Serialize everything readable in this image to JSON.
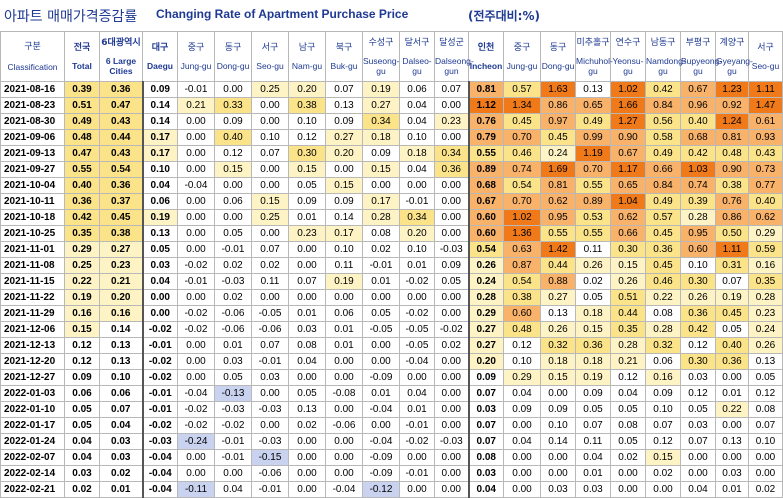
{
  "title": {
    "korean": "아파트 매매가격증감률",
    "english": "Changing Rate of Apartment Purchase Price",
    "unit": "(전주대비:%)"
  },
  "header_row1_label": "구분",
  "header_row2_label": "Classification",
  "columns": [
    {
      "ko": "전국",
      "en": "Total"
    },
    {
      "ko": "6대광역시",
      "en": "6 Large Cities"
    },
    {
      "ko": "대구",
      "en": "Daegu"
    },
    {
      "ko": "중구",
      "en": "Jung-gu"
    },
    {
      "ko": "동구",
      "en": "Dong-gu"
    },
    {
      "ko": "서구",
      "en": "Seo-gu"
    },
    {
      "ko": "남구",
      "en": "Nam-gu"
    },
    {
      "ko": "북구",
      "en": "Buk-gu"
    },
    {
      "ko": "수성구",
      "en": "Suseong-gu"
    },
    {
      "ko": "달서구",
      "en": "Dalseo-gu"
    },
    {
      "ko": "달성군",
      "en": "Dalseong-gun"
    },
    {
      "ko": "인천",
      "en": "Incheon"
    },
    {
      "ko": "중구",
      "en": "Jung-gu"
    },
    {
      "ko": "동구",
      "en": "Dong-gu"
    },
    {
      "ko": "미추홀구",
      "en": "Michuhol-gu"
    },
    {
      "ko": "연수구",
      "en": "Yeonsu-gu"
    },
    {
      "ko": "남동구",
      "en": "Namdong-gu"
    },
    {
      "ko": "부평구",
      "en": "Bupyeong-gu"
    },
    {
      "ko": "계양구",
      "en": "Gyeyang-gu"
    },
    {
      "ko": "서구",
      "en": "Seo-gu"
    }
  ],
  "rows": [
    {
      "date": "2021-08-16",
      "v": [
        "0.39",
        "0.36",
        "0.09",
        "-0.01",
        "0.00",
        "0.25",
        "0.20",
        "0.07",
        "0.19",
        "0.06",
        "0.07",
        "0.81",
        "0.57",
        "1.63",
        "0.13",
        "1.02",
        "0.42",
        "0.67",
        "1.23",
        "1.11"
      ]
    },
    {
      "date": "2021-08-23",
      "v": [
        "0.51",
        "0.47",
        "0.14",
        "0.21",
        "0.33",
        "0.00",
        "0.38",
        "0.13",
        "0.27",
        "0.04",
        "0.00",
        "1.12",
        "1.34",
        "0.86",
        "0.65",
        "1.66",
        "0.84",
        "0.96",
        "0.92",
        "1.47"
      ]
    },
    {
      "date": "2021-08-30",
      "v": [
        "0.49",
        "0.43",
        "0.14",
        "0.00",
        "0.09",
        "0.00",
        "0.10",
        "0.09",
        "0.34",
        "0.04",
        "0.23",
        "0.76",
        "0.45",
        "0.97",
        "0.49",
        "1.27",
        "0.56",
        "0.40",
        "1.24",
        "0.61"
      ]
    },
    {
      "date": "2021-09-06",
      "v": [
        "0.48",
        "0.44",
        "0.17",
        "0.00",
        "0.40",
        "0.10",
        "0.12",
        "0.27",
        "0.18",
        "0.10",
        "0.00",
        "0.79",
        "0.70",
        "0.45",
        "0.99",
        "0.90",
        "0.58",
        "0.68",
        "0.81",
        "0.93"
      ]
    },
    {
      "date": "2021-09-13",
      "v": [
        "0.47",
        "0.43",
        "0.17",
        "0.00",
        "0.12",
        "0.07",
        "0.30",
        "0.20",
        "0.09",
        "0.18",
        "0.34",
        "0.55",
        "0.46",
        "0.24",
        "1.19",
        "0.67",
        "0.49",
        "0.42",
        "0.48",
        "0.43"
      ]
    },
    {
      "date": "2021-09-27",
      "v": [
        "0.55",
        "0.54",
        "0.10",
        "0.00",
        "0.15",
        "0.00",
        "0.15",
        "0.00",
        "0.15",
        "0.04",
        "0.36",
        "0.89",
        "0.74",
        "1.69",
        "0.70",
        "1.17",
        "0.66",
        "1.03",
        "0.90",
        "0.73"
      ]
    },
    {
      "date": "2021-10-04",
      "v": [
        "0.40",
        "0.36",
        "0.04",
        "-0.04",
        "0.00",
        "0.00",
        "0.05",
        "0.15",
        "0.00",
        "0.00",
        "0.00",
        "0.68",
        "0.54",
        "0.81",
        "0.55",
        "0.65",
        "0.84",
        "0.74",
        "0.38",
        "0.77"
      ]
    },
    {
      "date": "2021-10-11",
      "v": [
        "0.36",
        "0.37",
        "0.06",
        "0.00",
        "0.06",
        "0.15",
        "0.09",
        "0.09",
        "0.17",
        "-0.01",
        "0.00",
        "0.67",
        "0.70",
        "0.62",
        "0.89",
        "1.04",
        "0.49",
        "0.39",
        "0.76",
        "0.40"
      ]
    },
    {
      "date": "2021-10-18",
      "v": [
        "0.42",
        "0.45",
        "0.19",
        "0.00",
        "0.00",
        "0.25",
        "0.01",
        "0.14",
        "0.28",
        "0.34",
        "0.00",
        "0.60",
        "1.02",
        "0.95",
        "0.53",
        "0.62",
        "0.57",
        "0.28",
        "0.86",
        "0.62"
      ]
    },
    {
      "date": "2021-10-25",
      "v": [
        "0.35",
        "0.38",
        "0.13",
        "0.00",
        "0.05",
        "0.00",
        "0.23",
        "0.17",
        "0.08",
        "0.20",
        "0.00",
        "0.60",
        "1.36",
        "0.55",
        "0.55",
        "0.66",
        "0.45",
        "0.95",
        "0.50",
        "0.29"
      ]
    },
    {
      "date": "2021-11-01",
      "v": [
        "0.29",
        "0.27",
        "0.05",
        "0.00",
        "-0.01",
        "0.07",
        "0.00",
        "0.10",
        "0.02",
        "0.10",
        "-0.03",
        "0.54",
        "0.63",
        "1.42",
        "0.11",
        "0.30",
        "0.36",
        "0.60",
        "1.11",
        "0.59"
      ]
    },
    {
      "date": "2021-11-08",
      "v": [
        "0.25",
        "0.23",
        "0.03",
        "-0.02",
        "0.02",
        "0.02",
        "0.00",
        "0.11",
        "-0.01",
        "0.01",
        "0.09",
        "0.26",
        "0.87",
        "0.44",
        "0.26",
        "0.15",
        "0.45",
        "0.10",
        "0.31",
        "0.16"
      ]
    },
    {
      "date": "2021-11-15",
      "v": [
        "0.22",
        "0.21",
        "0.04",
        "-0.01",
        "-0.03",
        "0.11",
        "0.07",
        "0.19",
        "0.01",
        "-0.02",
        "0.05",
        "0.24",
        "0.54",
        "0.88",
        "0.02",
        "0.26",
        "0.46",
        "0.30",
        "0.07",
        "0.35"
      ]
    },
    {
      "date": "2021-11-22",
      "v": [
        "0.19",
        "0.20",
        "0.00",
        "0.00",
        "0.02",
        "0.00",
        "0.00",
        "0.00",
        "0.00",
        "0.00",
        "0.00",
        "0.28",
        "0.38",
        "0.27",
        "0.05",
        "0.51",
        "0.22",
        "0.26",
        "0.19",
        "0.28"
      ]
    },
    {
      "date": "2021-11-29",
      "v": [
        "0.16",
        "0.16",
        "0.00",
        "-0.02",
        "-0.06",
        "-0.05",
        "0.01",
        "0.06",
        "0.05",
        "-0.02",
        "0.00",
        "0.29",
        "0.60",
        "0.13",
        "0.18",
        "0.44",
        "0.08",
        "0.36",
        "0.45",
        "0.23"
      ]
    },
    {
      "date": "2021-12-06",
      "v": [
        "0.15",
        "0.14",
        "-0.02",
        "-0.02",
        "-0.06",
        "-0.06",
        "0.03",
        "0.01",
        "-0.05",
        "-0.05",
        "-0.02",
        "0.27",
        "0.48",
        "0.26",
        "0.15",
        "0.35",
        "0.28",
        "0.42",
        "0.05",
        "0.24"
      ]
    },
    {
      "date": "2021-12-13",
      "v": [
        "0.12",
        "0.13",
        "-0.01",
        "0.00",
        "0.01",
        "0.07",
        "0.08",
        "0.01",
        "0.00",
        "-0.05",
        "0.02",
        "0.27",
        "0.12",
        "0.32",
        "0.36",
        "0.28",
        "0.32",
        "0.12",
        "0.40",
        "0.26"
      ]
    },
    {
      "date": "2021-12-20",
      "v": [
        "0.12",
        "0.13",
        "-0.02",
        "0.00",
        "0.03",
        "-0.01",
        "0.04",
        "0.00",
        "0.00",
        "-0.04",
        "0.00",
        "0.20",
        "0.10",
        "0.18",
        "0.18",
        "0.21",
        "0.06",
        "0.30",
        "0.36",
        "0.13"
      ]
    },
    {
      "date": "2021-12-27",
      "v": [
        "0.09",
        "0.10",
        "-0.02",
        "0.00",
        "0.05",
        "0.03",
        "0.00",
        "0.00",
        "-0.09",
        "0.00",
        "0.00",
        "0.09",
        "0.29",
        "0.15",
        "0.19",
        "0.12",
        "0.16",
        "0.03",
        "0.00",
        "0.05"
      ]
    },
    {
      "date": "2022-01-03",
      "v": [
        "0.06",
        "0.06",
        "-0.01",
        "-0.04",
        "-0.13",
        "0.00",
        "0.05",
        "-0.08",
        "0.01",
        "0.04",
        "0.00",
        "0.07",
        "0.04",
        "0.00",
        "0.09",
        "0.04",
        "0.09",
        "0.12",
        "0.01",
        "0.12"
      ]
    },
    {
      "date": "2022-01-10",
      "v": [
        "0.05",
        "0.07",
        "-0.01",
        "-0.02",
        "-0.03",
        "-0.03",
        "0.13",
        "0.00",
        "-0.04",
        "0.01",
        "0.00",
        "0.03",
        "0.09",
        "0.09",
        "0.05",
        "0.05",
        "0.10",
        "0.05",
        "0.22",
        "0.08"
      ]
    },
    {
      "date": "2022-01-17",
      "v": [
        "0.05",
        "0.04",
        "-0.02",
        "-0.02",
        "-0.02",
        "0.00",
        "0.02",
        "-0.06",
        "0.00",
        "-0.01",
        "0.00",
        "0.07",
        "0.00",
        "0.10",
        "0.07",
        "0.08",
        "0.07",
        "0.03",
        "0.00",
        "0.07"
      ]
    },
    {
      "date": "2022-01-24",
      "v": [
        "0.04",
        "0.03",
        "-0.03",
        "-0.24",
        "-0.01",
        "-0.03",
        "0.00",
        "0.00",
        "-0.04",
        "-0.02",
        "-0.03",
        "0.07",
        "0.04",
        "0.14",
        "0.11",
        "0.05",
        "0.12",
        "0.07",
        "0.13",
        "0.10"
      ]
    },
    {
      "date": "2022-02-07",
      "v": [
        "0.04",
        "0.03",
        "-0.04",
        "0.00",
        "-0.01",
        "-0.15",
        "0.00",
        "0.00",
        "-0.09",
        "0.00",
        "0.00",
        "0.08",
        "0.00",
        "0.00",
        "0.04",
        "0.02",
        "0.15",
        "0.00",
        "0.00",
        "0.00"
      ]
    },
    {
      "date": "2022-02-14",
      "v": [
        "0.03",
        "0.02",
        "-0.04",
        "0.00",
        "0.00",
        "-0.06",
        "0.00",
        "0.00",
        "-0.09",
        "-0.01",
        "0.00",
        "0.03",
        "0.00",
        "0.00",
        "0.01",
        "0.00",
        "0.02",
        "0.00",
        "0.03",
        "0.00"
      ]
    },
    {
      "date": "2022-02-21",
      "v": [
        "0.02",
        "0.01",
        "-0.04",
        "-0.11",
        "0.04",
        "-0.01",
        "0.00",
        "-0.04",
        "-0.12",
        "0.00",
        "0.00",
        "0.04",
        "0.00",
        "0.03",
        "0.03",
        "0.00",
        "0.00",
        "0.04",
        "0.01",
        "0.02"
      ]
    }
  ],
  "colors": {
    "header_text": "#1f3a93",
    "orange_high": "#f07a1a",
    "orange_mid": "#f9b26a",
    "yellow": "#fbe38a",
    "pale_yellow": "#fdf3c4",
    "negative_blue": "#c9d3f0"
  }
}
